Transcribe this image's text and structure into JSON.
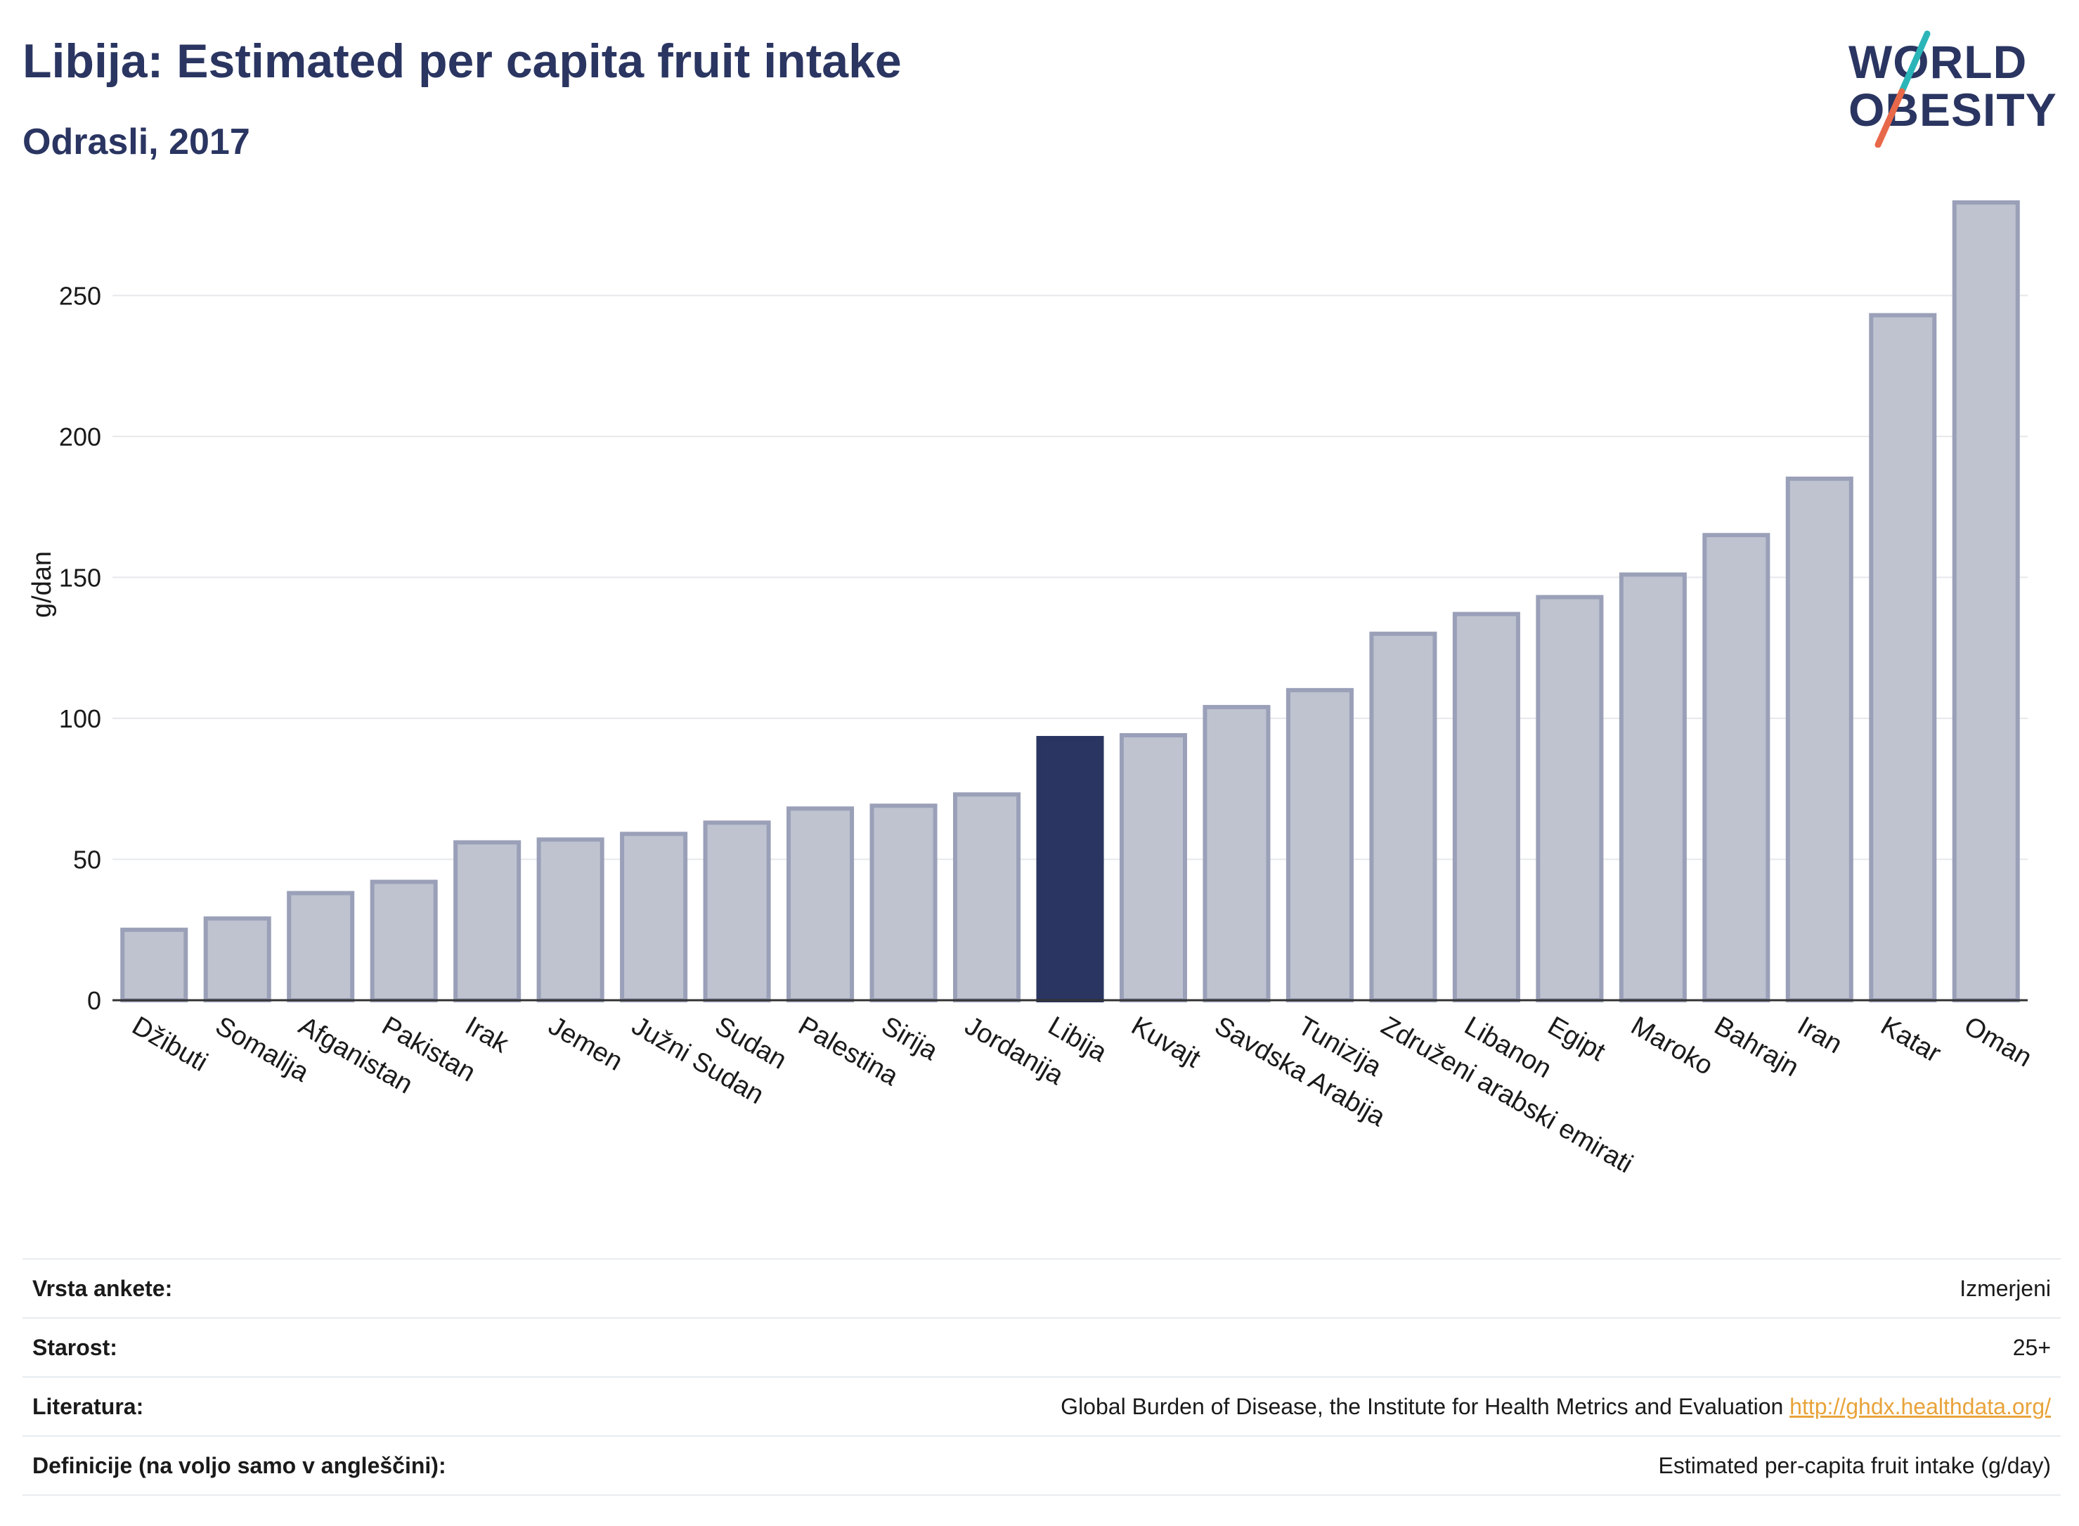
{
  "header": {
    "title": "Libija: Estimated per capita fruit intake",
    "subtitle": "Odrasli, 2017"
  },
  "logo": {
    "line1": "WORLD",
    "line2": "OBESITY",
    "slash_colors": [
      "#2bb5b8",
      "#e8684a"
    ]
  },
  "colors": {
    "bar": "#bfc3d0",
    "bar_stroke": "#9aa0b8",
    "highlight": "#2a3561",
    "grid": "#e6e8ec",
    "axis": "#333333"
  },
  "chart_data": {
    "type": "bar",
    "title": "Libija: Estimated per capita fruit intake",
    "subtitle": "Odrasli, 2017",
    "xlabel": "",
    "ylabel": "g/dan",
    "ylim": [
      0,
      285
    ],
    "yticks": [
      0,
      50,
      100,
      150,
      200,
      250
    ],
    "grid": true,
    "highlight": "Libija",
    "categories": [
      "Džibuti",
      "Somalija",
      "Afganistan",
      "Pakistan",
      "Irak",
      "Jemen",
      "Južni Sudan",
      "Sudan",
      "Palestina",
      "Sirija",
      "Jordanija",
      "Libija",
      "Kuvajt",
      "Savdska Arabija",
      "Tunizija",
      "Združeni arabski emirati",
      "Libanon",
      "Egipt",
      "Maroko",
      "Bahrajn",
      "Iran",
      "Katar",
      "Oman"
    ],
    "values": [
      25,
      29,
      38,
      42,
      56,
      57,
      59,
      63,
      68,
      69,
      73,
      93,
      94,
      104,
      110,
      130,
      137,
      143,
      151,
      165,
      185,
      243,
      283
    ]
  },
  "info": {
    "rows": [
      {
        "label": "Vrsta ankete:",
        "value": "Izmerjeni",
        "link": ""
      },
      {
        "label": "Starost:",
        "value": "25+",
        "link": ""
      },
      {
        "label": "Literatura:",
        "value": "Global Burden of Disease, the Institute for Health Metrics and Evaluation",
        "link": "http://ghdx.healthdata.org/"
      },
      {
        "label": "Definicije (na voljo samo v angleščini):",
        "value": "Estimated per-capita fruit intake (g/day)",
        "link": ""
      }
    ]
  }
}
